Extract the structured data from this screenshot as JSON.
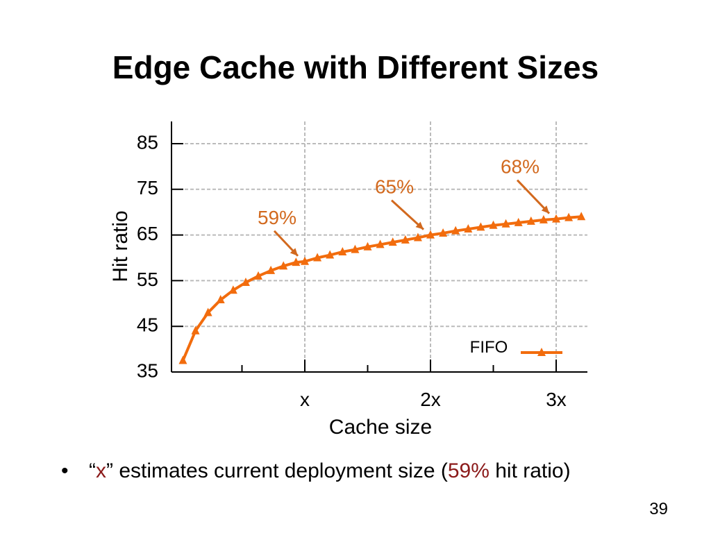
{
  "slide": {
    "title": "Edge Cache with Different Sizes",
    "page_number": "39"
  },
  "bullet": {
    "marker": "•",
    "open_quote": "“",
    "x_term": "x",
    "mid_text": "” estimates current deployment size (",
    "percent": "59%",
    "end_text": " hit ratio)"
  },
  "colors": {
    "series": "#f26c0d",
    "annotation": "#d2691e",
    "highlight_text": "#8b1a1a",
    "grid": "#bbbbbb"
  },
  "chart_data": {
    "type": "line",
    "xlabel": "Cache size",
    "ylabel": "Hit ratio",
    "ylim": [
      35,
      85
    ],
    "xlim": [
      0,
      3.25
    ],
    "yticks": [
      "35",
      "45",
      "55",
      "65",
      "75",
      "85"
    ],
    "xtick_labels": [
      {
        "x": 1,
        "label": "x"
      },
      {
        "x": 2,
        "label": "2x"
      },
      {
        "x": 3,
        "label": "3x"
      }
    ],
    "minor_xticks": [
      0.5,
      1.5,
      2.5
    ],
    "grid": true,
    "legend_position": "bottom-right",
    "series": [
      {
        "name": "FIFO",
        "marker": "triangle",
        "x": [
          0.03,
          0.13,
          0.23,
          0.33,
          0.43,
          0.53,
          0.63,
          0.73,
          0.83,
          0.93,
          1.0,
          1.1,
          1.2,
          1.3,
          1.4,
          1.5,
          1.6,
          1.7,
          1.8,
          1.9,
          2.0,
          2.1,
          2.2,
          2.3,
          2.4,
          2.5,
          2.6,
          2.7,
          2.8,
          2.9,
          3.0,
          3.1,
          3.2,
          3.3
        ],
        "values": [
          37.5,
          44,
          48,
          50.8,
          52.9,
          54.6,
          56,
          57.2,
          58.2,
          59,
          59.2,
          60,
          60.6,
          61.3,
          61.8,
          62.4,
          62.9,
          63.4,
          63.9,
          64.4,
          65,
          65.4,
          65.9,
          66.3,
          66.7,
          67.1,
          67.4,
          67.7,
          68,
          68.3,
          68.5,
          68.8,
          69,
          69.3
        ]
      }
    ],
    "annotations": [
      {
        "text": "59%",
        "x": 1.0,
        "y": 59.2
      },
      {
        "text": "65%",
        "x": 2.0,
        "y": 65
      },
      {
        "text": "68%",
        "x": 3.0,
        "y": 68.5
      }
    ]
  }
}
